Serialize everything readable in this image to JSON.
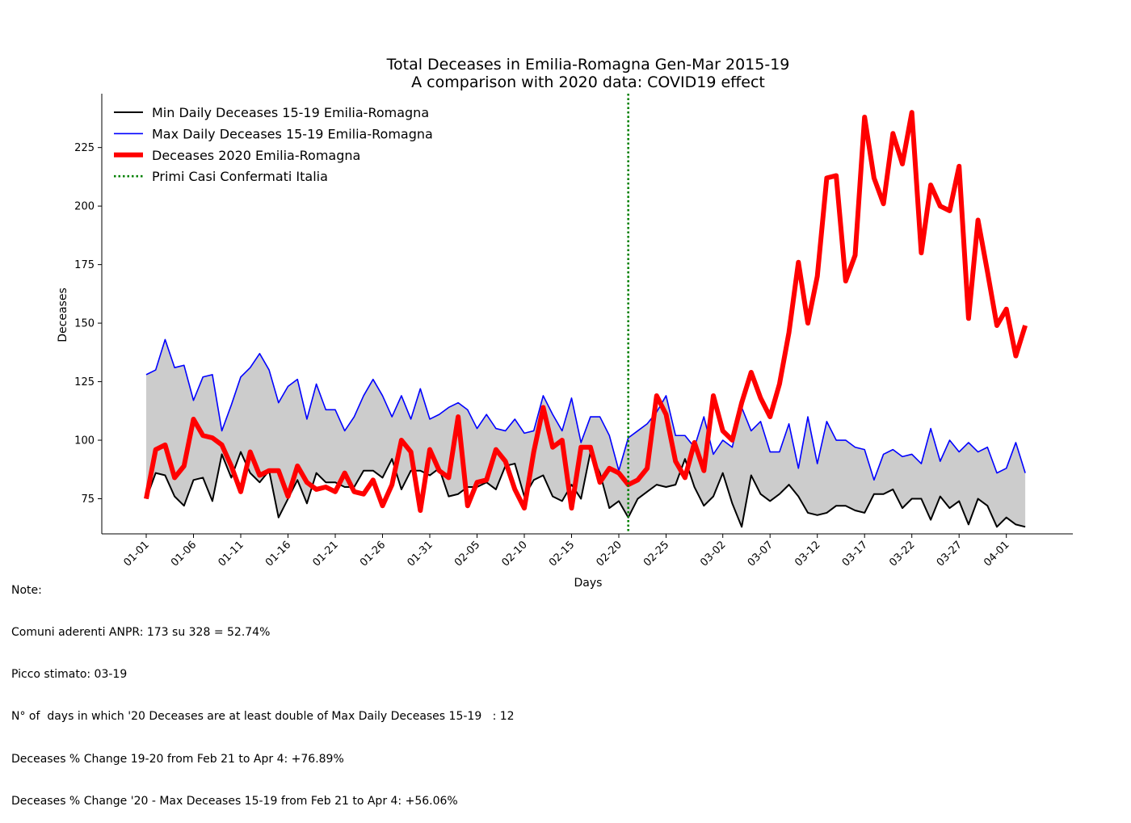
{
  "chart_data": {
    "type": "line",
    "title": "Total Deceases in Emilia-Romagna Gen-Mar 2015-19",
    "subtitle": "A comparison with 2020 data: COVID19 effect",
    "xlabel": "Days",
    "ylabel": "Deceases",
    "ylim": [
      60,
      248
    ],
    "yticks": [
      75,
      100,
      125,
      150,
      175,
      200,
      225
    ],
    "x_start": "01-01",
    "x_end": "04-04",
    "xtick_labels": [
      "01-01",
      "01-06",
      "01-11",
      "01-16",
      "01-21",
      "01-26",
      "01-31",
      "02-05",
      "02-10",
      "02-15",
      "02-20",
      "02-25",
      "03-02",
      "03-07",
      "03-12",
      "03-17",
      "03-22",
      "03-27",
      "04-01"
    ],
    "legend_position": "top-left",
    "grid": false,
    "series": [
      {
        "name": "Min Daily Deceases 15-19 Emilia-Romagna",
        "color": "#000000",
        "values": [
          75,
          86,
          85,
          76,
          72,
          83,
          84,
          74,
          94,
          84,
          95,
          86,
          82,
          87,
          67,
          75,
          83,
          73,
          86,
          82,
          82,
          80,
          80,
          87,
          87,
          84,
          92,
          79,
          87,
          87,
          85,
          88,
          76,
          77,
          80,
          80,
          82,
          79,
          89,
          90,
          76,
          83,
          85,
          76,
          74,
          81,
          75,
          95,
          86,
          71,
          74,
          67,
          75,
          78,
          81,
          80,
          81,
          92,
          80,
          72,
          76,
          86,
          73,
          63,
          85,
          77,
          74,
          77,
          81,
          76,
          69,
          68,
          69,
          72,
          72,
          70,
          69,
          77,
          77,
          79,
          71,
          75,
          75,
          66,
          76,
          71,
          74,
          64,
          75,
          72,
          63,
          67,
          64,
          63
        ]
      },
      {
        "name": "Max Daily Deceases 15-19 Emilia-Romagna",
        "color": "#0000ff",
        "values": [
          128,
          130,
          143,
          131,
          132,
          117,
          127,
          128,
          104,
          115,
          127,
          131,
          137,
          130,
          116,
          123,
          126,
          109,
          124,
          113,
          113,
          104,
          110,
          119,
          126,
          119,
          110,
          119,
          109,
          122,
          109,
          111,
          114,
          116,
          113,
          105,
          111,
          105,
          104,
          109,
          103,
          104,
          119,
          111,
          104,
          118,
          99,
          110,
          110,
          102,
          87,
          101,
          104,
          107,
          112,
          119,
          102,
          102,
          97,
          110,
          94,
          100,
          97,
          114,
          104,
          108,
          95,
          95,
          107,
          88,
          110,
          90,
          108,
          100,
          100,
          97,
          96,
          83,
          94,
          96,
          93,
          94,
          90,
          105,
          91,
          100,
          95,
          99,
          95,
          97,
          86,
          88,
          99,
          86
        ]
      },
      {
        "name": "Deceases 2020 Emilia-Romagna",
        "color": "#ff0000",
        "values": [
          75,
          96,
          98,
          84,
          89,
          109,
          102,
          101,
          98,
          89,
          78,
          95,
          85,
          87,
          87,
          76,
          89,
          82,
          79,
          80,
          78,
          86,
          78,
          77,
          83,
          72,
          81,
          100,
          95,
          70,
          96,
          87,
          84,
          110,
          72,
          82,
          83,
          96,
          91,
          79,
          71,
          95,
          114,
          97,
          100,
          71,
          97,
          97,
          82,
          88,
          86,
          81,
          83,
          88,
          119,
          111,
          91,
          84,
          99,
          87,
          119,
          104,
          100,
          116,
          129,
          118,
          110,
          124,
          146,
          176,
          150,
          170,
          212,
          213,
          168,
          179,
          238,
          212,
          201,
          231,
          218,
          240,
          180,
          209,
          200,
          198,
          217,
          152,
          194,
          172,
          149,
          156,
          136,
          149
        ]
      }
    ],
    "vline": {
      "name": "Primi Casi Confermati Italia",
      "color": "#008000",
      "x": "02-21"
    },
    "fill_between": {
      "color": "#cccccc"
    }
  },
  "notes": {
    "header": "Note:",
    "line1": "Comuni aderenti ANPR: 173 su 328 = 52.74%",
    "line2": "Picco stimato: 03-19",
    "line3": "N° of  days in which '20 Deceases are at least double of Max Daily Deceases 15-19   : 12",
    "line4": "Deceases % Change 19-20 from Feb 21 to Apr 4: +76.89%",
    "line5": "Deceases % Change '20 - Max Deceases 15-19 from Feb 21 to Apr 4: +56.06%"
  }
}
